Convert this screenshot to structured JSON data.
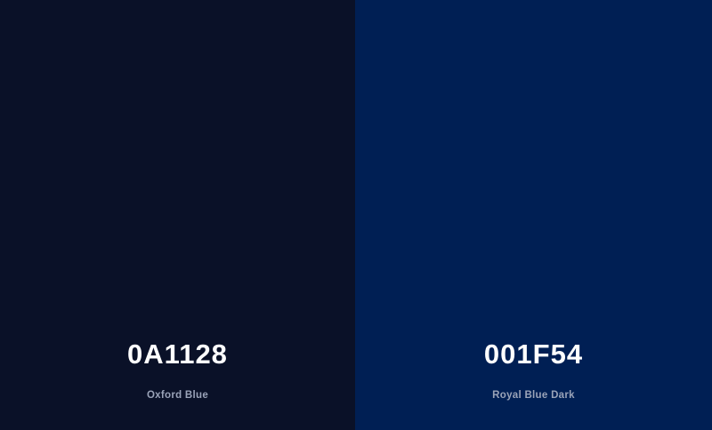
{
  "palette": {
    "colors": [
      {
        "hex": "0A1128",
        "name": "Oxford Blue",
        "background": "#0A1128"
      },
      {
        "hex": "001F54",
        "name": "Royal Blue Dark",
        "background": "#001F54"
      }
    ]
  }
}
